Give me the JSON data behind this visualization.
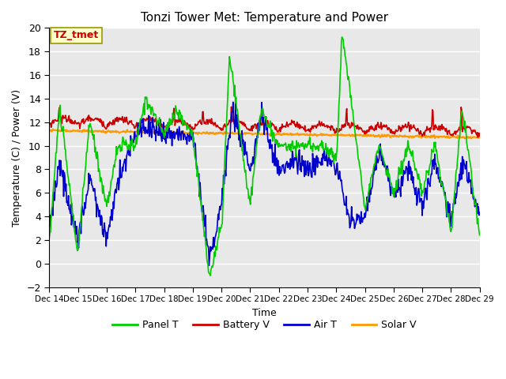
{
  "title": "Tonzi Tower Met: Temperature and Power",
  "xlabel": "Time",
  "ylabel": "Temperature (C) / Power (V)",
  "ylim": [
    -2,
    20
  ],
  "yticks": [
    -2,
    0,
    2,
    4,
    6,
    8,
    10,
    12,
    14,
    16,
    18,
    20
  ],
  "x_labels": [
    "Dec 14",
    "Dec 15",
    "Dec 16",
    "Dec 17",
    "Dec 18",
    "Dec 19",
    "Dec 20",
    "Dec 21",
    "Dec 22",
    "Dec 23",
    "Dec 24",
    "Dec 25",
    "Dec 26",
    "Dec 27",
    "Dec 28",
    "Dec 29"
  ],
  "annotation_text": "TZ_tmet",
  "annotation_color": "#cc0000",
  "annotation_bg": "#ffffcc",
  "annotation_edge": "#999900",
  "plot_bg": "#e8e8e8",
  "colors": {
    "panel_t": "#00cc00",
    "battery_v": "#cc0000",
    "air_t": "#0000cc",
    "solar_v": "#ff9900"
  },
  "legend": [
    "Panel T",
    "Battery V",
    "Air T",
    "Solar V"
  ]
}
